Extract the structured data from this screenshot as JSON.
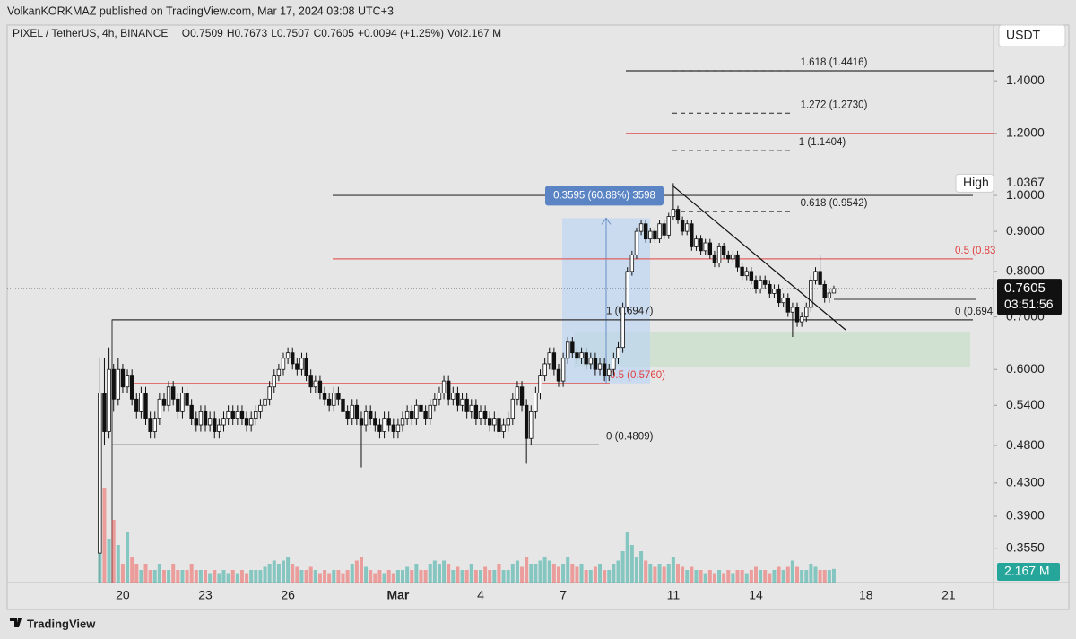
{
  "header": {
    "attribution": "VolkanKORKMAZ published on TradingView.com, Mar 17, 2024 03:08 UTC+3",
    "symbol": "PIXEL / TetherUS, 4h, BINANCE",
    "ohlc": [
      {
        "label": "O",
        "value": "0.7509"
      },
      {
        "label": "H",
        "value": "0.7673"
      },
      {
        "label": "L",
        "value": "0.7507"
      },
      {
        "label": "C",
        "value": "0.7605"
      }
    ],
    "change": "+0.0094 (+1.25%)",
    "volume": {
      "label": "Vol",
      "value": "2.167 M"
    }
  },
  "chart_data": {
    "type": "candlestick",
    "open": [
      0.35,
      0.56,
      0.5,
      0.6,
      0.55,
      0.6,
      0.57,
      0.59,
      0.55,
      0.53,
      0.56,
      0.52,
      0.5,
      0.52,
      0.55,
      0.54,
      0.57,
      0.55,
      0.53,
      0.56,
      0.54,
      0.52,
      0.51,
      0.53,
      0.51,
      0.52,
      0.5,
      0.51,
      0.52,
      0.53,
      0.52,
      0.53,
      0.52,
      0.51,
      0.52,
      0.53,
      0.54,
      0.55,
      0.57,
      0.59,
      0.6,
      0.62,
      0.63,
      0.61,
      0.6,
      0.62,
      0.59,
      0.57,
      0.58,
      0.56,
      0.55,
      0.54,
      0.56,
      0.55,
      0.53,
      0.52,
      0.54,
      0.52,
      0.51,
      0.53,
      0.52,
      0.51,
      0.5,
      0.52,
      0.51,
      0.5,
      0.51,
      0.52,
      0.53,
      0.52,
      0.54,
      0.53,
      0.52,
      0.54,
      0.55,
      0.56,
      0.58,
      0.55,
      0.56,
      0.54,
      0.55,
      0.53,
      0.54,
      0.52,
      0.53,
      0.52,
      0.51,
      0.52,
      0.5,
      0.51,
      0.52,
      0.55,
      0.57,
      0.54,
      0.49,
      0.53,
      0.56,
      0.59,
      0.61,
      0.63,
      0.6,
      0.58,
      0.62,
      0.65,
      0.63,
      0.62,
      0.63,
      0.61,
      0.62,
      0.6,
      0.61,
      0.59,
      0.6,
      0.62,
      0.64,
      0.72,
      0.8,
      0.84,
      0.9,
      0.92,
      0.88,
      0.9,
      0.88,
      0.92,
      0.89,
      0.94,
      0.96,
      0.93,
      0.9,
      0.92,
      0.86,
      0.88,
      0.85,
      0.87,
      0.84,
      0.82,
      0.86,
      0.84,
      0.83,
      0.84,
      0.81,
      0.79,
      0.8,
      0.78,
      0.76,
      0.78,
      0.77,
      0.75,
      0.76,
      0.73,
      0.74,
      0.71,
      0.72,
      0.69,
      0.7,
      0.72,
      0.78,
      0.8,
      0.77,
      0.74,
      0.7509
    ],
    "high": [
      0.62,
      0.62,
      0.64,
      0.61,
      0.62,
      0.61,
      0.6,
      0.6,
      0.56,
      0.57,
      0.57,
      0.53,
      0.53,
      0.56,
      0.56,
      0.58,
      0.58,
      0.56,
      0.57,
      0.57,
      0.55,
      0.53,
      0.54,
      0.54,
      0.53,
      0.53,
      0.52,
      0.53,
      0.54,
      0.54,
      0.54,
      0.54,
      0.53,
      0.53,
      0.54,
      0.55,
      0.56,
      0.58,
      0.6,
      0.61,
      0.63,
      0.64,
      0.64,
      0.62,
      0.63,
      0.63,
      0.6,
      0.59,
      0.59,
      0.57,
      0.56,
      0.57,
      0.57,
      0.56,
      0.54,
      0.55,
      0.55,
      0.53,
      0.54,
      0.54,
      0.53,
      0.52,
      0.53,
      0.53,
      0.52,
      0.52,
      0.53,
      0.54,
      0.54,
      0.55,
      0.55,
      0.54,
      0.55,
      0.56,
      0.57,
      0.59,
      0.59,
      0.57,
      0.57,
      0.56,
      0.56,
      0.55,
      0.55,
      0.54,
      0.54,
      0.53,
      0.53,
      0.53,
      0.52,
      0.53,
      0.56,
      0.58,
      0.58,
      0.55,
      0.54,
      0.57,
      0.6,
      0.62,
      0.64,
      0.64,
      0.61,
      0.63,
      0.66,
      0.66,
      0.64,
      0.64,
      0.64,
      0.63,
      0.63,
      0.62,
      0.62,
      0.61,
      0.63,
      0.65,
      0.73,
      0.81,
      0.85,
      0.91,
      0.93,
      0.93,
      0.91,
      0.91,
      0.93,
      0.93,
      0.95,
      1.0367,
      0.97,
      0.94,
      0.93,
      0.93,
      0.89,
      0.89,
      0.88,
      0.88,
      0.85,
      0.87,
      0.87,
      0.85,
      0.85,
      0.85,
      0.82,
      0.81,
      0.81,
      0.79,
      0.79,
      0.79,
      0.78,
      0.77,
      0.77,
      0.75,
      0.75,
      0.73,
      0.73,
      0.71,
      0.73,
      0.79,
      0.81,
      0.84,
      0.78,
      0.76,
      0.7673
    ],
    "low": [
      0.32,
      0.48,
      0.49,
      0.53,
      0.54,
      0.56,
      0.56,
      0.54,
      0.52,
      0.52,
      0.51,
      0.49,
      0.49,
      0.51,
      0.53,
      0.53,
      0.54,
      0.52,
      0.52,
      0.53,
      0.51,
      0.5,
      0.5,
      0.5,
      0.5,
      0.49,
      0.49,
      0.5,
      0.51,
      0.51,
      0.51,
      0.51,
      0.5,
      0.5,
      0.51,
      0.52,
      0.53,
      0.54,
      0.56,
      0.58,
      0.59,
      0.61,
      0.6,
      0.59,
      0.59,
      0.58,
      0.56,
      0.56,
      0.55,
      0.54,
      0.53,
      0.53,
      0.54,
      0.52,
      0.51,
      0.51,
      0.51,
      0.45,
      0.5,
      0.51,
      0.5,
      0.49,
      0.49,
      0.5,
      0.49,
      0.49,
      0.5,
      0.51,
      0.51,
      0.51,
      0.52,
      0.51,
      0.51,
      0.53,
      0.54,
      0.55,
      0.54,
      0.54,
      0.53,
      0.53,
      0.52,
      0.52,
      0.51,
      0.51,
      0.51,
      0.5,
      0.5,
      0.49,
      0.49,
      0.5,
      0.51,
      0.54,
      0.53,
      0.455,
      0.48,
      0.52,
      0.55,
      0.58,
      0.6,
      0.59,
      0.57,
      0.57,
      0.61,
      0.62,
      0.61,
      0.61,
      0.6,
      0.6,
      0.59,
      0.59,
      0.58,
      0.58,
      0.59,
      0.61,
      0.63,
      0.71,
      0.79,
      0.83,
      0.89,
      0.87,
      0.87,
      0.87,
      0.87,
      0.88,
      0.88,
      0.93,
      0.92,
      0.89,
      0.89,
      0.85,
      0.85,
      0.84,
      0.84,
      0.83,
      0.81,
      0.81,
      0.83,
      0.82,
      0.82,
      0.8,
      0.78,
      0.78,
      0.77,
      0.75,
      0.75,
      0.76,
      0.74,
      0.74,
      0.72,
      0.72,
      0.7,
      0.66,
      0.68,
      0.68,
      0.69,
      0.71,
      0.77,
      0.76,
      0.73,
      0.73,
      0.7507
    ],
    "close": [
      0.56,
      0.5,
      0.6,
      0.55,
      0.6,
      0.57,
      0.59,
      0.55,
      0.53,
      0.56,
      0.52,
      0.5,
      0.52,
      0.55,
      0.54,
      0.57,
      0.55,
      0.53,
      0.56,
      0.54,
      0.52,
      0.51,
      0.53,
      0.51,
      0.52,
      0.5,
      0.51,
      0.52,
      0.53,
      0.52,
      0.53,
      0.52,
      0.51,
      0.52,
      0.53,
      0.54,
      0.55,
      0.57,
      0.59,
      0.6,
      0.62,
      0.63,
      0.61,
      0.6,
      0.62,
      0.59,
      0.57,
      0.58,
      0.56,
      0.55,
      0.54,
      0.56,
      0.55,
      0.53,
      0.52,
      0.54,
      0.52,
      0.51,
      0.53,
      0.52,
      0.51,
      0.5,
      0.52,
      0.51,
      0.5,
      0.51,
      0.52,
      0.53,
      0.52,
      0.54,
      0.53,
      0.52,
      0.54,
      0.55,
      0.56,
      0.58,
      0.55,
      0.56,
      0.54,
      0.55,
      0.53,
      0.54,
      0.52,
      0.53,
      0.52,
      0.51,
      0.52,
      0.5,
      0.51,
      0.52,
      0.55,
      0.57,
      0.54,
      0.49,
      0.53,
      0.56,
      0.59,
      0.61,
      0.63,
      0.6,
      0.58,
      0.62,
      0.65,
      0.63,
      0.62,
      0.63,
      0.61,
      0.62,
      0.6,
      0.61,
      0.59,
      0.6,
      0.62,
      0.64,
      0.72,
      0.8,
      0.84,
      0.9,
      0.92,
      0.88,
      0.9,
      0.88,
      0.92,
      0.89,
      0.94,
      0.96,
      0.93,
      0.9,
      0.92,
      0.86,
      0.88,
      0.85,
      0.87,
      0.84,
      0.82,
      0.86,
      0.84,
      0.83,
      0.84,
      0.81,
      0.79,
      0.8,
      0.78,
      0.76,
      0.78,
      0.77,
      0.75,
      0.76,
      0.73,
      0.74,
      0.71,
      0.72,
      0.69,
      0.7,
      0.72,
      0.78,
      0.8,
      0.77,
      0.74,
      0.7509,
      0.7605
    ],
    "volume": [
      23,
      15,
      7,
      10,
      6,
      3,
      8,
      4,
      3,
      2,
      3,
      2,
      2,
      3,
      2,
      2,
      3,
      2,
      2,
      2,
      3,
      2,
      2,
      2,
      1.5,
      2,
      1.5,
      2,
      1.5,
      2,
      1.5,
      2,
      1.5,
      2,
      2,
      2,
      2.5,
      3,
      3.5,
      3,
      3.5,
      4,
      3,
      2.5,
      2,
      2,
      2.5,
      2,
      1.5,
      2,
      1.5,
      2,
      2,
      1.5,
      2,
      3,
      3.5,
      4,
      2.5,
      2,
      1.5,
      2,
      1.5,
      2,
      1.5,
      2,
      2,
      2.5,
      2,
      3,
      2,
      2,
      3,
      3.5,
      3,
      3.5,
      3,
      2,
      2.5,
      2,
      2,
      3,
      2,
      2,
      2.5,
      2,
      2,
      3,
      2,
      2,
      3,
      3.5,
      2.5,
      4,
      3,
      3,
      3.5,
      4,
      3.5,
      3,
      2.5,
      3,
      4,
      3,
      2.5,
      3,
      2,
      2,
      2.5,
      3,
      2,
      2,
      3,
      3.5,
      5,
      8,
      6,
      4,
      5,
      3.5,
      3,
      2.5,
      3,
      2.5,
      3,
      4,
      3,
      2.5,
      2,
      2.5,
      2,
      2,
      1.5,
      2,
      1.5,
      2,
      1.5,
      2,
      1.5,
      2,
      2,
      1.5,
      2,
      2.5,
      2,
      2,
      1.5,
      2,
      2.5,
      2,
      2.5,
      3.5,
      2.5,
      2,
      2,
      3,
      2.5,
      2,
      2,
      2,
      2.167
    ],
    "volume_label": {
      "value": 2.167,
      "label": "2.167 M"
    },
    "up_color": "#26a69a",
    "down_color": "#ef5350",
    "xlim": [
      -20.2,
      194.8
    ],
    "xticks": [
      {
        "value": 5,
        "label": "20"
      },
      {
        "value": 23,
        "label": "23"
      },
      {
        "value": 41,
        "label": "26"
      },
      {
        "value": 65,
        "label": "Mar"
      },
      {
        "value": 83,
        "label": "4"
      },
      {
        "value": 101,
        "label": "7"
      },
      {
        "value": 125,
        "label": "11"
      },
      {
        "value": 143,
        "label": "14"
      },
      {
        "value": 167,
        "label": "18"
      },
      {
        "value": 185,
        "label": "21"
      }
    ],
    "ylim": [
      0.321,
      1.64
    ],
    "log_scale": true,
    "grid": false,
    "yticks": [
      {
        "value": 1.4,
        "label": "1.4000"
      },
      {
        "value": 1.2,
        "label": "1.2000"
      },
      {
        "value": 1.0,
        "label": "1.0000"
      },
      {
        "value": 0.9,
        "label": "0.9000"
      },
      {
        "value": 0.8,
        "label": "0.8000"
      },
      {
        "value": 0.7,
        "label": "0.7000"
      },
      {
        "value": 0.6,
        "label": "0.6000"
      },
      {
        "value": 0.54,
        "label": "0.5400"
      },
      {
        "value": 0.48,
        "label": "0.4800"
      },
      {
        "value": 0.43,
        "label": "0.4300"
      },
      {
        "value": 0.39,
        "label": "0.3900"
      },
      {
        "value": 0.355,
        "label": "0.3550"
      }
    ],
    "currency": "USDT",
    "last_price": 0.7605,
    "countdown": "03:51:56",
    "high_marker": {
      "label": "High",
      "value": 1.0367
    },
    "levels": [
      {
        "value": 1.4416,
        "label": "1.618 (1.4416)"
      },
      {
        "value": 1.273,
        "label": "1.272 (1.2730)"
      },
      {
        "value": 1.1404,
        "label": "1 (1.1404)"
      },
      {
        "value": 0.9542,
        "label": "0.618 (0.9542)"
      },
      {
        "value": 0.83,
        "label": "0.5 (0.83"
      },
      {
        "value": 0.694,
        "label": "0 (0.694"
      },
      {
        "value": 0.6947,
        "label": "1 (0.6947)"
      },
      {
        "value": 0.576,
        "label": "0.5 (0.5760)"
      },
      {
        "value": 0.4809,
        "label": "0 (0.4809)"
      }
    ],
    "lines": [
      1.2,
      1.0
    ],
    "measurement": {
      "label": "0.3595 (60.88%) 3598",
      "from": 0.576,
      "to": 0.9355
    }
  },
  "footer": {
    "brand": "TradingView"
  }
}
